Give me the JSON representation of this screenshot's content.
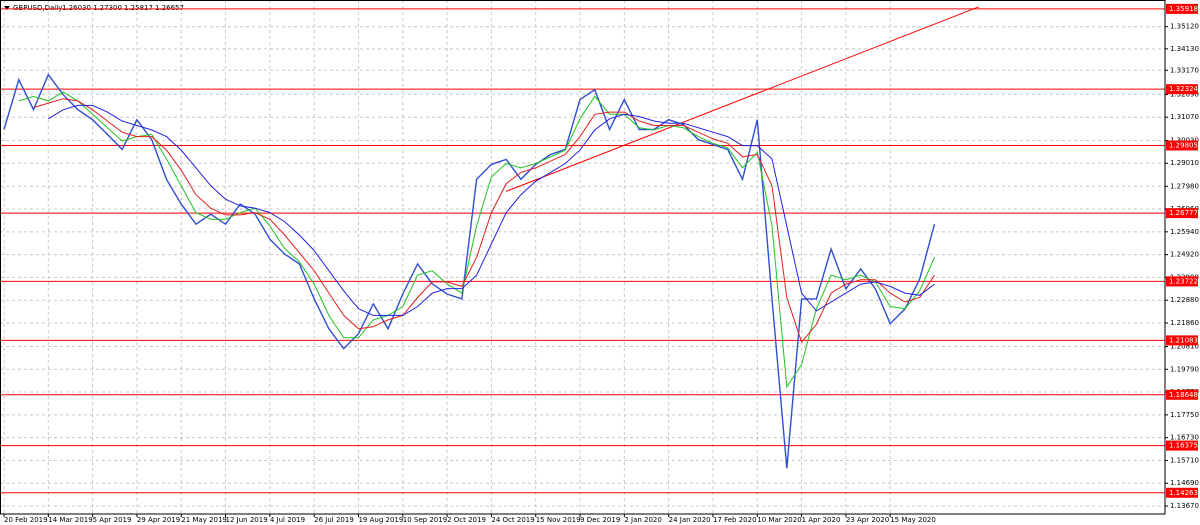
{
  "chart_data": {
    "type": "line",
    "title": "GBPUSD,Daily",
    "last_bar": [
      {
        "value": 1.2603,
        "label": "1.26030"
      },
      {
        "value": 1.273,
        "label": "1.27300"
      },
      {
        "value": 1.25817,
        "label": "1.25817"
      },
      {
        "value": 1.26657,
        "label": "1.26657"
      }
    ],
    "categories": [
      "20 Feb 2019",
      null,
      null,
      "14 Mar 2019",
      null,
      null,
      "5 Apr 2019",
      null,
      null,
      "29 Apr 2019",
      null,
      null,
      "21 May 2019",
      null,
      null,
      "12 Jun 2019",
      null,
      null,
      "4 Jul 2019",
      null,
      null,
      "26 Jul 2019",
      null,
      null,
      "19 Aug 2019",
      null,
      null,
      "10 Sep 2019",
      null,
      null,
      "2 Oct 2019",
      null,
      null,
      "24 Oct 2019",
      null,
      null,
      "15 Nov 2019",
      null,
      null,
      "9 Dec 2019",
      null,
      null,
      "2 Jan 2020",
      null,
      null,
      "24 Jan 2020",
      null,
      null,
      "17 Feb 2020",
      null,
      null,
      "10 Mar 2020",
      null,
      null,
      "1 Apr 2020",
      null,
      null,
      "23 Apr 2020",
      null,
      null,
      "15 May 2020",
      null,
      null,
      null
    ],
    "series": [
      {
        "color": "#2f4fd0",
        "values": [
          1.3052,
          1.3275,
          1.3141,
          1.3297,
          1.3208,
          1.3141,
          1.3096,
          1.303,
          1.2963,
          1.3096,
          1.3007,
          1.2829,
          1.2718,
          1.2628,
          1.2673,
          1.2628,
          1.2718,
          1.2673,
          1.2561,
          1.2495,
          1.245,
          1.2294,
          1.216,
          1.2071,
          1.2138,
          1.2272,
          1.216,
          1.2316,
          1.245,
          1.2361,
          1.2316,
          1.2294,
          1.2829,
          1.2896,
          1.2918,
          1.2829,
          1.2896,
          1.294,
          1.2963,
          1.3186,
          1.323,
          1.3052,
          1.3186,
          1.3052,
          1.3052,
          1.3096,
          1.3074,
          1.3007,
          1.2985,
          1.2963,
          1.2829,
          1.3096,
          1.2294,
          1.1536,
          1.2294,
          1.2294,
          1.2517,
          1.2339,
          1.2428,
          1.2339,
          1.2183,
          1.2249,
          1.2383,
          1.2628
        ]
      },
      {
        "color": "#22c322",
        "values": [
          null,
          1.318,
          1.32,
          1.318,
          1.322,
          1.318,
          1.312,
          1.306,
          1.3,
          1.302,
          1.303,
          1.292,
          1.28,
          1.268,
          1.265,
          1.265,
          1.268,
          1.27,
          1.262,
          1.252,
          1.246,
          1.236,
          1.222,
          1.212,
          1.212,
          1.22,
          1.222,
          1.226,
          1.24,
          1.242,
          1.236,
          1.232,
          1.262,
          1.284,
          1.29,
          1.288,
          1.29,
          1.293,
          1.296,
          1.31,
          1.32,
          1.312,
          1.312,
          1.306,
          1.305,
          1.307,
          1.306,
          1.302,
          1.299,
          1.297,
          1.288,
          1.295,
          1.262,
          1.19,
          1.2,
          1.225,
          1.24,
          1.238,
          1.24,
          1.237,
          1.226,
          1.225,
          1.233,
          1.248
        ]
      },
      {
        "color": "#e02020",
        "values": [
          null,
          null,
          1.315,
          1.317,
          1.319,
          1.318,
          1.314,
          1.309,
          1.304,
          1.302,
          1.302,
          1.296,
          1.287,
          1.276,
          1.27,
          1.267,
          1.267,
          1.268,
          1.265,
          1.258,
          1.25,
          1.242,
          1.232,
          1.222,
          1.216,
          1.217,
          1.22,
          1.222,
          1.23,
          1.237,
          1.237,
          1.235,
          1.248,
          1.268,
          1.281,
          1.286,
          1.288,
          1.291,
          1.294,
          1.302,
          1.312,
          1.313,
          1.313,
          1.309,
          1.307,
          1.307,
          1.307,
          1.304,
          1.301,
          1.299,
          1.293,
          1.294,
          1.28,
          1.23,
          1.21,
          1.218,
          1.232,
          1.236,
          1.238,
          1.238,
          1.232,
          1.228,
          1.23,
          1.24
        ]
      },
      {
        "color": "#2020e0",
        "values": [
          null,
          null,
          null,
          1.31,
          1.314,
          1.316,
          1.316,
          1.313,
          1.309,
          1.307,
          1.305,
          1.302,
          1.296,
          1.288,
          1.28,
          1.274,
          1.271,
          1.27,
          1.268,
          1.264,
          1.258,
          1.251,
          1.242,
          1.233,
          1.225,
          1.222,
          1.222,
          1.222,
          1.226,
          1.232,
          1.234,
          1.234,
          1.24,
          1.254,
          1.268,
          1.276,
          1.282,
          1.286,
          1.29,
          1.296,
          1.305,
          1.31,
          1.312,
          1.311,
          1.309,
          1.308,
          1.308,
          1.306,
          1.304,
          1.302,
          1.298,
          1.298,
          1.292,
          1.262,
          1.232,
          1.224,
          1.228,
          1.232,
          1.236,
          1.237,
          1.235,
          1.232,
          1.231,
          1.236
        ]
      }
    ],
    "levels": [
      1.35918,
      1.32324,
      1.29805,
      1.26777,
      1.23722,
      1.21083,
      1.18648,
      1.16375,
      1.14263
    ],
    "level_color": "#ff0000",
    "trendline": {
      "x": [
        34,
        66
      ],
      "values": [
        1.2775,
        1.3601
      ],
      "color": "#ff0000"
    },
    "ylim": [
      1.13313,
      1.36315
    ],
    "yticks": [
      {
        "value": 1.1367,
        "label": "1.13670"
      },
      {
        "value": 1.1469,
        "label": "1.14690"
      },
      {
        "value": 1.1571,
        "label": "1.15710"
      },
      {
        "value": 1.1673,
        "label": "1.16730"
      },
      {
        "value": 1.1775,
        "label": "1.17750"
      },
      {
        "value": 1.1877,
        "label": "1.18770"
      },
      {
        "value": 1.1979,
        "label": "1.19790"
      },
      {
        "value": 1.2081,
        "label": "1.20810"
      },
      {
        "value": 1.2186,
        "label": "1.21860"
      },
      {
        "value": 1.2288,
        "label": "1.22880"
      },
      {
        "value": 1.239,
        "label": "1.23900"
      },
      {
        "value": 1.2492,
        "label": "1.24920"
      },
      {
        "value": 1.2594,
        "label": "1.25940"
      },
      {
        "value": 1.2696,
        "label": "1.26960"
      },
      {
        "value": 1.2798,
        "label": "1.27980"
      },
      {
        "value": 1.2901,
        "label": "1.29010"
      },
      {
        "value": 1.3003,
        "label": "1.30030"
      },
      {
        "value": 1.3107,
        "label": "1.31070"
      },
      {
        "value": 1.3209,
        "label": "1.32090"
      },
      {
        "value": 1.3317,
        "label": "1.33170"
      },
      {
        "value": 1.3413,
        "label": "1.34130"
      },
      {
        "value": 1.3512,
        "label": "1.35120"
      }
    ],
    "grid": true
  }
}
